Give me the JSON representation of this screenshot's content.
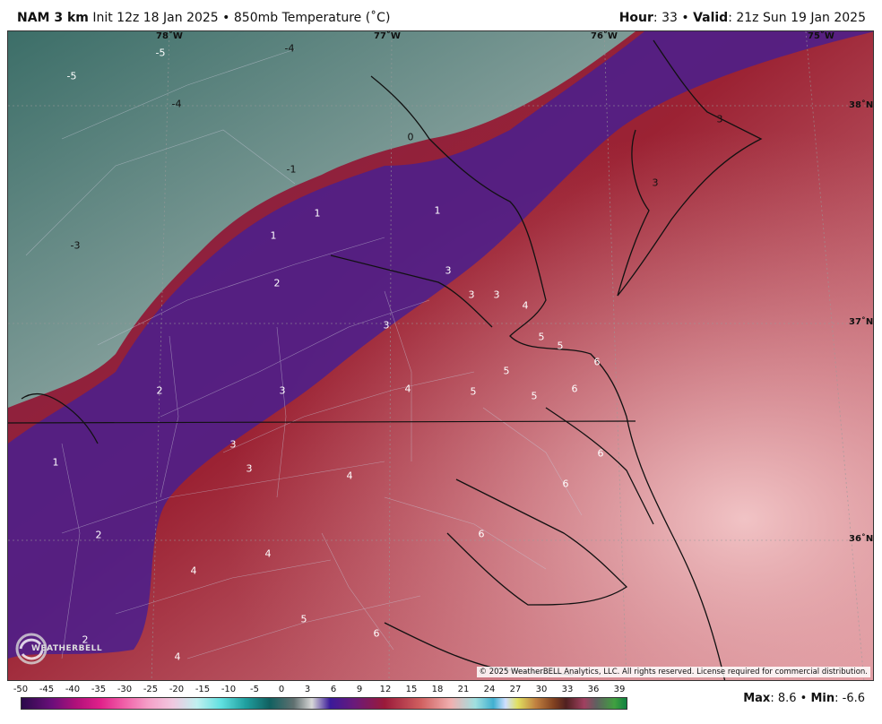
{
  "header": {
    "model": "NAM 3 km",
    "init": "Init 12z 18 Jan 2025",
    "sep": "•",
    "field": "850mb Temperature (˚C)",
    "hour_label": "Hour",
    "hour_value": ": 33",
    "valid_label": "Valid",
    "valid_value": ": 21z Sun 19 Jan 2025"
  },
  "map": {
    "longitudes": [
      "78˚W",
      "77˚W",
      "76˚W",
      "75˚W"
    ],
    "latitudes": [
      "38˚N",
      "37˚N",
      "36˚N"
    ],
    "contour_labels": [
      {
        "text": "-5"
      },
      {
        "text": "-5"
      },
      {
        "text": "-4"
      },
      {
        "text": "-4"
      },
      {
        "text": "0"
      },
      {
        "text": "-1"
      },
      {
        "text": "-3"
      },
      {
        "text": "1"
      },
      {
        "text": "1"
      },
      {
        "text": "1"
      },
      {
        "text": "3"
      },
      {
        "text": "3"
      },
      {
        "text": "2"
      },
      {
        "text": "3"
      },
      {
        "text": "3"
      },
      {
        "text": "3"
      },
      {
        "text": "4"
      },
      {
        "text": "3"
      },
      {
        "text": "5"
      },
      {
        "text": "5"
      },
      {
        "text": "2"
      },
      {
        "text": "3"
      },
      {
        "text": "4"
      },
      {
        "text": "5"
      },
      {
        "text": "5"
      },
      {
        "text": "6"
      },
      {
        "text": "5"
      },
      {
        "text": "6"
      },
      {
        "text": "1"
      },
      {
        "text": "3"
      },
      {
        "text": "3"
      },
      {
        "text": "4"
      },
      {
        "text": "6"
      },
      {
        "text": "6"
      },
      {
        "text": "2"
      },
      {
        "text": "4"
      },
      {
        "text": "4"
      },
      {
        "text": "6"
      },
      {
        "text": "5"
      },
      {
        "text": "6"
      },
      {
        "text": "2"
      },
      {
        "text": "4"
      }
    ],
    "copyright": "© 2025 WeatherBELL Analytics, LLC. All rights reserved. License required for commercial distribution.",
    "logo_text": "WEATHERBELL"
  },
  "colorbar": {
    "ticks": [
      "-50",
      "-45",
      "-40",
      "-35",
      "-30",
      "-25",
      "-20",
      "-15",
      "-10",
      "-5",
      "0",
      "3",
      "6",
      "9",
      "12",
      "15",
      "18",
      "21",
      "24",
      "27",
      "30",
      "33",
      "36",
      "39"
    ]
  },
  "stats": {
    "max_label": "Max",
    "max_value": ": 8.6",
    "sep": "•",
    "min_label": "Min",
    "min_value": ": -6.6"
  }
}
